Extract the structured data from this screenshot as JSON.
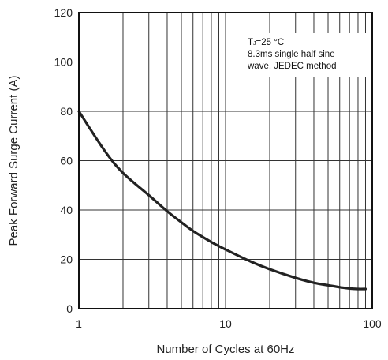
{
  "chart_data": {
    "type": "line",
    "title": "",
    "xlabel": "Number of Cycles at 60Hz",
    "ylabel": "Peak Forward Surge Current (A)",
    "xscale": "log",
    "xlim": [
      1,
      100
    ],
    "ylim": [
      0,
      120
    ],
    "x_ticks": [
      1,
      10,
      100
    ],
    "x_tick_labels": [
      "1",
      "10",
      "100"
    ],
    "y_ticks": [
      0,
      20,
      40,
      60,
      80,
      100,
      120
    ],
    "y_tick_labels": [
      "0",
      "20",
      "40",
      "60",
      "80",
      "100",
      "120"
    ],
    "grid": true,
    "legend": "none",
    "annotation": {
      "lines": [
        {
          "main": "T",
          "sub": "J",
          "rest": "=25 °C"
        },
        {
          "main": "8.3ms single half sine",
          "sub": "",
          "rest": ""
        },
        {
          "main": "wave, JEDEC method",
          "sub": "",
          "rest": ""
        }
      ],
      "placement": "top-right"
    },
    "series": [
      {
        "color": "#222222",
        "x": [
          1,
          1.5,
          2,
          3,
          4,
          5,
          6,
          8,
          10,
          15,
          20,
          30,
          40,
          50,
          60,
          70,
          80,
          90
        ],
        "y": [
          80,
          64,
          55,
          46,
          39.5,
          35,
          31.5,
          27,
          24,
          19,
          16,
          12.5,
          10.5,
          9.5,
          8.7,
          8.2,
          8,
          8
        ]
      }
    ]
  }
}
